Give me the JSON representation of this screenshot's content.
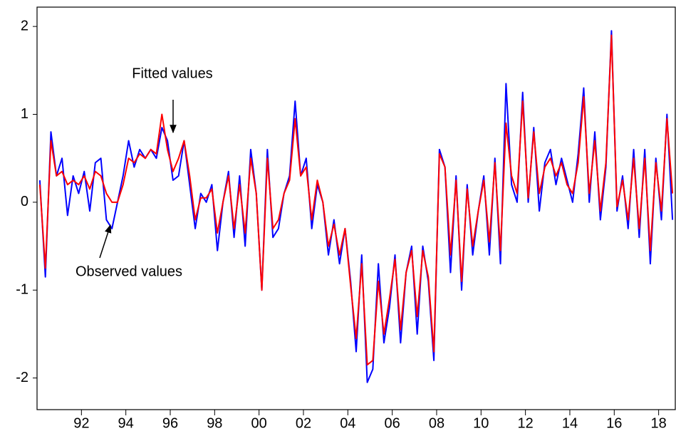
{
  "chart_data": {
    "type": "line",
    "annotations": [
      "Fitted values",
      "Observed values"
    ],
    "x": [
      1990.125,
      1990.375,
      1990.625,
      1990.875,
      1991.125,
      1991.375,
      1991.625,
      1991.875,
      1992.125,
      1992.375,
      1992.625,
      1992.875,
      1993.125,
      1993.375,
      1993.625,
      1993.875,
      1994.125,
      1994.375,
      1994.625,
      1994.875,
      1995.125,
      1995.375,
      1995.625,
      1995.875,
      1996.125,
      1996.375,
      1996.625,
      1996.875,
      1997.125,
      1997.375,
      1997.625,
      1997.875,
      1998.125,
      1998.375,
      1998.625,
      1998.875,
      1999.125,
      1999.375,
      1999.625,
      1999.875,
      2000.125,
      2000.375,
      2000.625,
      2000.875,
      2001.125,
      2001.375,
      2001.625,
      2001.875,
      2002.125,
      2002.375,
      2002.625,
      2002.875,
      2003.125,
      2003.375,
      2003.625,
      2003.875,
      2004.125,
      2004.375,
      2004.625,
      2004.875,
      2005.125,
      2005.375,
      2005.625,
      2005.875,
      2006.125,
      2006.375,
      2006.625,
      2006.875,
      2007.125,
      2007.375,
      2007.625,
      2007.875,
      2008.125,
      2008.375,
      2008.625,
      2008.875,
      2009.125,
      2009.375,
      2009.625,
      2009.875,
      2010.125,
      2010.375,
      2010.625,
      2010.875,
      2011.125,
      2011.375,
      2011.625,
      2011.875,
      2012.125,
      2012.375,
      2012.625,
      2012.875,
      2013.125,
      2013.375,
      2013.625,
      2013.875,
      2014.125,
      2014.375,
      2014.625,
      2014.875,
      2015.125,
      2015.375,
      2015.625,
      2015.875,
      2016.125,
      2016.375,
      2016.625,
      2016.875,
      2017.125,
      2017.375,
      2017.625,
      2017.875,
      2018.125,
      2018.375,
      2018.625
    ],
    "series": [
      {
        "name": "Observed values",
        "color": "#0000ff",
        "values": [
          0.25,
          -0.85,
          0.8,
          0.3,
          0.5,
          -0.15,
          0.3,
          0.1,
          0.35,
          -0.1,
          0.45,
          0.5,
          -0.2,
          -0.3,
          0.0,
          0.3,
          0.7,
          0.4,
          0.6,
          0.5,
          0.6,
          0.5,
          0.85,
          0.7,
          0.25,
          0.3,
          0.7,
          0.2,
          -0.3,
          0.1,
          0.0,
          0.2,
          -0.55,
          0.0,
          0.35,
          -0.4,
          0.3,
          -0.5,
          0.6,
          0.1,
          -1.0,
          0.6,
          -0.4,
          -0.3,
          0.1,
          0.3,
          1.15,
          0.3,
          0.5,
          -0.3,
          0.2,
          0.0,
          -0.6,
          -0.2,
          -0.7,
          -0.3,
          -0.9,
          -1.7,
          -0.6,
          -2.05,
          -1.9,
          -0.7,
          -1.6,
          -1.2,
          -0.6,
          -1.6,
          -0.8,
          -0.5,
          -1.5,
          -0.5,
          -0.9,
          -1.8,
          0.6,
          0.4,
          -0.8,
          0.3,
          -1.0,
          0.2,
          -0.6,
          -0.1,
          0.3,
          -0.6,
          0.5,
          -0.7,
          1.35,
          0.2,
          0.0,
          1.25,
          0.0,
          0.85,
          -0.1,
          0.45,
          0.6,
          0.2,
          0.5,
          0.25,
          0.0,
          0.55,
          1.3,
          0.0,
          0.8,
          -0.2,
          0.4,
          1.95,
          -0.1,
          0.3,
          -0.3,
          0.6,
          -0.4,
          0.6,
          -0.7,
          0.5,
          -0.2,
          1.0,
          -0.2
        ]
      },
      {
        "name": "Fitted values",
        "color": "#ff0000",
        "values": [
          0.2,
          -0.75,
          0.7,
          0.3,
          0.35,
          0.2,
          0.25,
          0.2,
          0.3,
          0.15,
          0.35,
          0.3,
          0.1,
          0.0,
          0.0,
          0.2,
          0.5,
          0.45,
          0.55,
          0.5,
          0.6,
          0.55,
          1.0,
          0.6,
          0.35,
          0.5,
          0.7,
          0.3,
          -0.2,
          0.05,
          0.05,
          0.15,
          -0.35,
          0.0,
          0.3,
          -0.3,
          0.2,
          -0.35,
          0.5,
          0.1,
          -1.0,
          0.5,
          -0.3,
          -0.2,
          0.1,
          0.25,
          0.95,
          0.3,
          0.4,
          -0.2,
          0.25,
          0.0,
          -0.5,
          -0.25,
          -0.6,
          -0.3,
          -0.95,
          -1.55,
          -0.7,
          -1.85,
          -1.8,
          -0.9,
          -1.5,
          -1.1,
          -0.65,
          -1.45,
          -0.8,
          -0.55,
          -1.3,
          -0.55,
          -0.85,
          -1.7,
          0.55,
          0.4,
          -0.6,
          0.25,
          -0.9,
          0.15,
          -0.5,
          -0.1,
          0.25,
          -0.45,
          0.45,
          -0.55,
          0.9,
          0.3,
          0.1,
          1.15,
          0.05,
          0.8,
          0.1,
          0.4,
          0.5,
          0.3,
          0.45,
          0.2,
          0.1,
          0.45,
          1.2,
          0.1,
          0.7,
          -0.1,
          0.45,
          1.9,
          -0.05,
          0.25,
          -0.2,
          0.5,
          -0.3,
          0.5,
          -0.55,
          0.45,
          -0.1,
          0.95,
          0.1
        ]
      }
    ],
    "xlim": [
      1990,
      2018.75
    ],
    "xticks": [
      {
        "value": 1992,
        "label": "92"
      },
      {
        "value": 1994,
        "label": "94"
      },
      {
        "value": 1996,
        "label": "96"
      },
      {
        "value": 1998,
        "label": "98"
      },
      {
        "value": 2000,
        "label": "00"
      },
      {
        "value": 2002,
        "label": "02"
      },
      {
        "value": 2004,
        "label": "04"
      },
      {
        "value": 2006,
        "label": "06"
      },
      {
        "value": 2008,
        "label": "08"
      },
      {
        "value": 2010,
        "label": "10"
      },
      {
        "value": 2012,
        "label": "12"
      },
      {
        "value": 2014,
        "label": "14"
      },
      {
        "value": 2016,
        "label": "16"
      },
      {
        "value": 2018,
        "label": "18"
      }
    ],
    "ylim": [
      -2.36,
      2.22
    ],
    "yticks": [
      -2,
      -1,
      0,
      1,
      2
    ],
    "grid": false
  }
}
